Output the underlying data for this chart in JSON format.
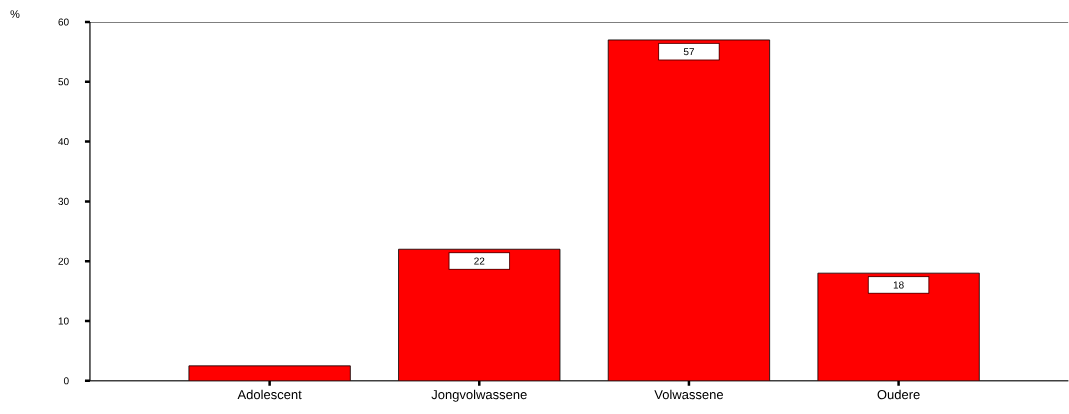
{
  "chart_data": {
    "type": "bar",
    "ylabel": "%",
    "categories": [
      "Adolescent",
      "Jongvolwassene",
      "Volwassene",
      "Oudere"
    ],
    "values": [
      2.5,
      22,
      57,
      18
    ],
    "value_labels": [
      null,
      "22",
      "57",
      "18"
    ],
    "color": "#ff0000",
    "ylim": [
      0,
      60
    ],
    "yticks": [
      0,
      10,
      20,
      30,
      40,
      50,
      60
    ],
    "grid": false
  }
}
